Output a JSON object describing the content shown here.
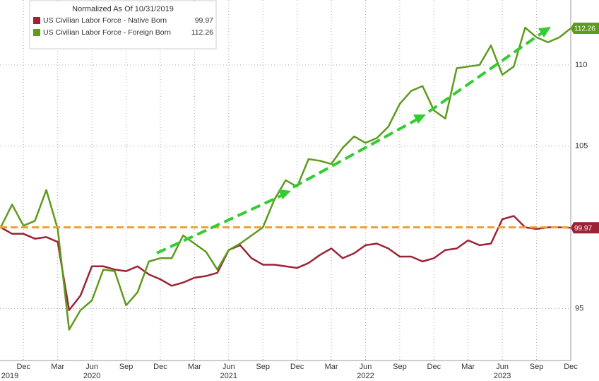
{
  "chart_data": {
    "type": "line",
    "title": "Normalized As Of 10/31/2019",
    "categories": [
      null,
      null,
      "Dec",
      null,
      null,
      "Mar",
      null,
      null,
      "Jun",
      null,
      null,
      "Sep",
      null,
      null,
      "Dec",
      null,
      null,
      "Mar",
      null,
      null,
      "Jun",
      null,
      null,
      "Sep",
      null,
      null,
      "Dec",
      null,
      null,
      "Mar",
      null,
      null,
      "Jun",
      null,
      null,
      "Sep",
      null,
      null,
      "Dec",
      null,
      null,
      "Mar",
      null,
      null,
      "Jun",
      null,
      null,
      "Sep",
      null,
      null,
      "Dec"
    ],
    "category_years": [
      "2019",
      null,
      null,
      null,
      null,
      null,
      null,
      null,
      "2020",
      null,
      null,
      null,
      null,
      null,
      null,
      null,
      null,
      null,
      null,
      null,
      "2021",
      null,
      null,
      null,
      null,
      null,
      null,
      null,
      null,
      null,
      null,
      null,
      "2022",
      null,
      null,
      null,
      null,
      null,
      null,
      null,
      null,
      null,
      null,
      null,
      "2023",
      null,
      null,
      null,
      null,
      null,
      null
    ],
    "series": [
      {
        "name": "US Civilian Labor Force - Native Born",
        "color": "#9b2335",
        "values": [
          100,
          99.6,
          99.6,
          99.3,
          99.4,
          99.1,
          94.9,
          95.8,
          97.6,
          97.6,
          97.4,
          97.3,
          97.6,
          97.1,
          96.8,
          96.4,
          96.6,
          96.9,
          97.0,
          97.2,
          98.6,
          98.9,
          98.1,
          97.7,
          97.7,
          97.6,
          97.5,
          97.8,
          98.3,
          98.7,
          98.1,
          98.4,
          98.9,
          99.0,
          98.7,
          98.2,
          98.2,
          97.9,
          98.1,
          98.6,
          98.7,
          99.2,
          98.9,
          99.0,
          100.5,
          100.7,
          100.0,
          99.9,
          100.0,
          100.0,
          99.97
        ]
      },
      {
        "name": "US Civilian Labor Force - Foreign Born",
        "color": "#5e9a1c",
        "values": [
          100,
          101.4,
          100.1,
          100.4,
          102.3,
          99.9,
          93.7,
          94.9,
          95.5,
          97.4,
          97.3,
          95.2,
          96.0,
          97.9,
          98.1,
          98.1,
          99.5,
          99.0,
          98.5,
          97.4,
          98.6,
          99.0,
          99.5,
          100.0,
          101.7,
          102.9,
          102.5,
          104.2,
          104.1,
          103.9,
          104.9,
          105.6,
          105.2,
          105.5,
          106.2,
          107.6,
          108.4,
          108.7,
          107.2,
          106.7,
          109.8,
          109.9,
          110.0,
          111.2,
          109.4,
          109.9,
          112.3,
          111.7,
          111.4,
          111.7,
          112.26
        ]
      }
    ],
    "reference_line": 100,
    "reference_color": "#f0a030",
    "ylim": [
      91.8,
      114
    ],
    "yticks": [
      95,
      105,
      110
    ],
    "grid": true
  }
}
